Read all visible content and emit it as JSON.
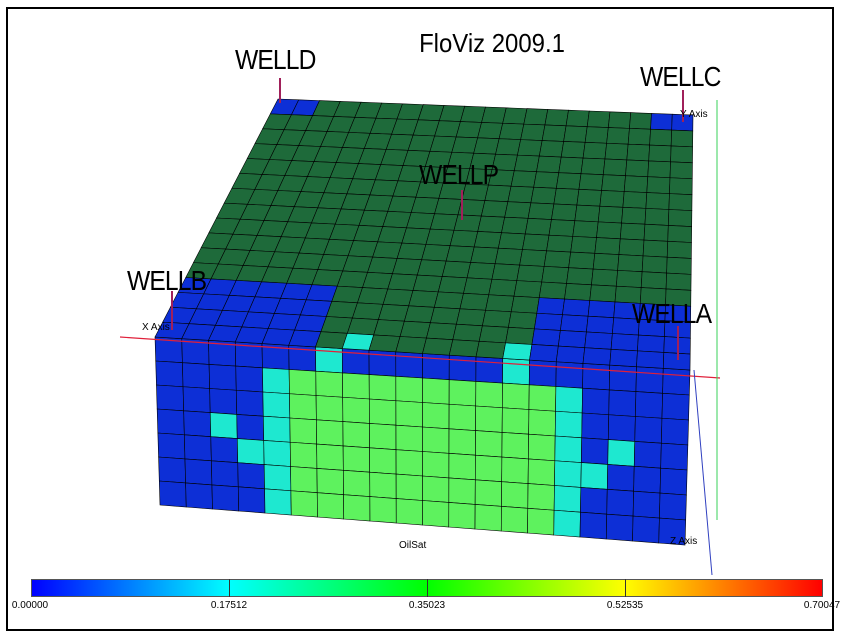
{
  "title": "FloViz 2009.1",
  "wells": {
    "welld": "WELLD",
    "wellc": "WELLC",
    "wellp": "WELLP",
    "wellb": "WELLB",
    "wella": "WELLA"
  },
  "axes": {
    "x_label": "X Axis",
    "y_label": "Y Axis",
    "z_label": "Z Axis"
  },
  "property_name": "OilSat",
  "colorbar": {
    "min": "0.00000",
    "ticks": [
      "0.00000",
      "0.17512",
      "0.35023",
      "0.52535",
      "0.70047"
    ],
    "colors": [
      "#0000ff",
      "#00ffff",
      "#00ff00",
      "#ffff00",
      "#ff0000"
    ]
  },
  "colors": {
    "top_face": "#1e6a3a",
    "cell_low": "#0d2fd6",
    "cell_mid": "#1ee8d0",
    "cell_high": "#5ef25e",
    "x_axis": "#e0203a",
    "y_axis": "#3ad25a",
    "z_axis": "#3040c0",
    "well_marker": "#a0205a"
  }
}
